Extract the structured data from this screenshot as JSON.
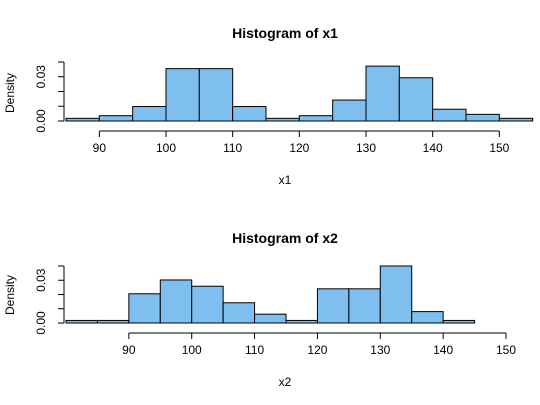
{
  "chart_data": [
    {
      "type": "bar",
      "title": "Histogram of x1",
      "xlabel": "x1",
      "ylabel": "Density",
      "bar_color": "#7fbfef",
      "bin_width": 5,
      "x": [
        85,
        90,
        95,
        100,
        105,
        110,
        115,
        120,
        125,
        130,
        135,
        140,
        145,
        150
      ],
      "values": [
        0.0018,
        0.0036,
        0.0098,
        0.0355,
        0.0355,
        0.0098,
        0.0018,
        0.0036,
        0.0142,
        0.0372,
        0.0293,
        0.008,
        0.0045,
        0.0018
      ],
      "xlim": [
        85,
        151
      ],
      "ylim": [
        0,
        0.04
      ],
      "xticks": [
        90,
        100,
        110,
        120,
        130,
        140,
        150
      ],
      "yticks": [
        0.0,
        0.01,
        0.02,
        0.03,
        0.04
      ],
      "ytick_labels": [
        "0.00",
        "",
        "",
        "0.03",
        ""
      ],
      "grid": false
    },
    {
      "type": "bar",
      "title": "Histogram of x2",
      "xlabel": "x2",
      "ylabel": "Density",
      "bar_color": "#7fbfef",
      "bin_width": 5,
      "x": [
        80,
        85,
        90,
        95,
        100,
        105,
        110,
        115,
        120,
        125,
        130,
        135,
        140
      ],
      "values": [
        0.0018,
        0.0018,
        0.0205,
        0.0302,
        0.0258,
        0.0142,
        0.0062,
        0.0018,
        0.024,
        0.024,
        0.04,
        0.008,
        0.0018
      ],
      "xlim": [
        80,
        150
      ],
      "ylim": [
        0,
        0.04
      ],
      "xticks": [
        90,
        100,
        110,
        120,
        130,
        140,
        150
      ],
      "yticks": [
        0.0,
        0.01,
        0.02,
        0.03,
        0.04
      ],
      "ytick_labels": [
        "0.00",
        "",
        "",
        "0.03",
        ""
      ],
      "grid": false
    }
  ]
}
